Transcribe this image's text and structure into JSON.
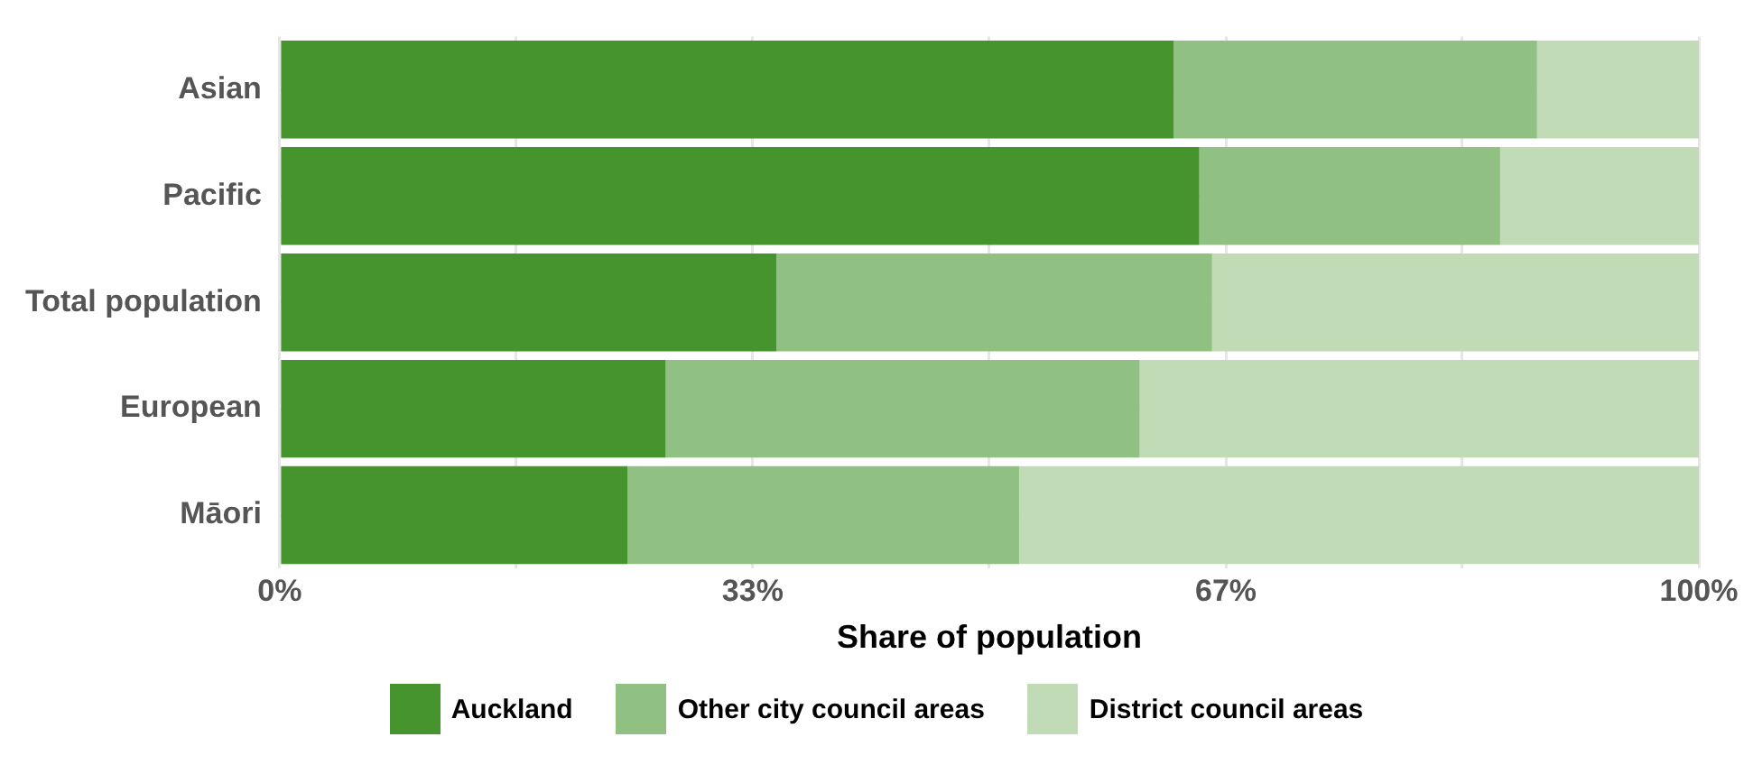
{
  "chart_data": {
    "type": "bar",
    "orientation": "horizontal",
    "stacked": true,
    "categories": [
      "Asian",
      "Pacific",
      "Total population",
      "European",
      "Māori"
    ],
    "series": [
      {
        "name": "Auckland",
        "color": "#46942d",
        "values": [
          63.0,
          64.8,
          35.0,
          27.2,
          24.5
        ]
      },
      {
        "name": "Other city council areas",
        "color": "#90c182",
        "values": [
          25.6,
          21.2,
          30.7,
          33.4,
          27.6
        ]
      },
      {
        "name": "District council areas",
        "color": "#c0dbb6",
        "values": [
          11.4,
          14.0,
          34.3,
          39.4,
          47.9
        ]
      }
    ],
    "xlabel": "Share of population",
    "xlim": [
      0,
      100
    ],
    "xticks": [
      {
        "value": 0,
        "label": "0%"
      },
      {
        "value": 16.67,
        "label": null
      },
      {
        "value": 33.33,
        "label": "33%"
      },
      {
        "value": 50,
        "label": null
      },
      {
        "value": 66.67,
        "label": "67%"
      },
      {
        "value": 83.33,
        "label": null
      },
      {
        "value": 100,
        "label": "100%"
      }
    ],
    "grid": true,
    "legend": "bottom"
  }
}
